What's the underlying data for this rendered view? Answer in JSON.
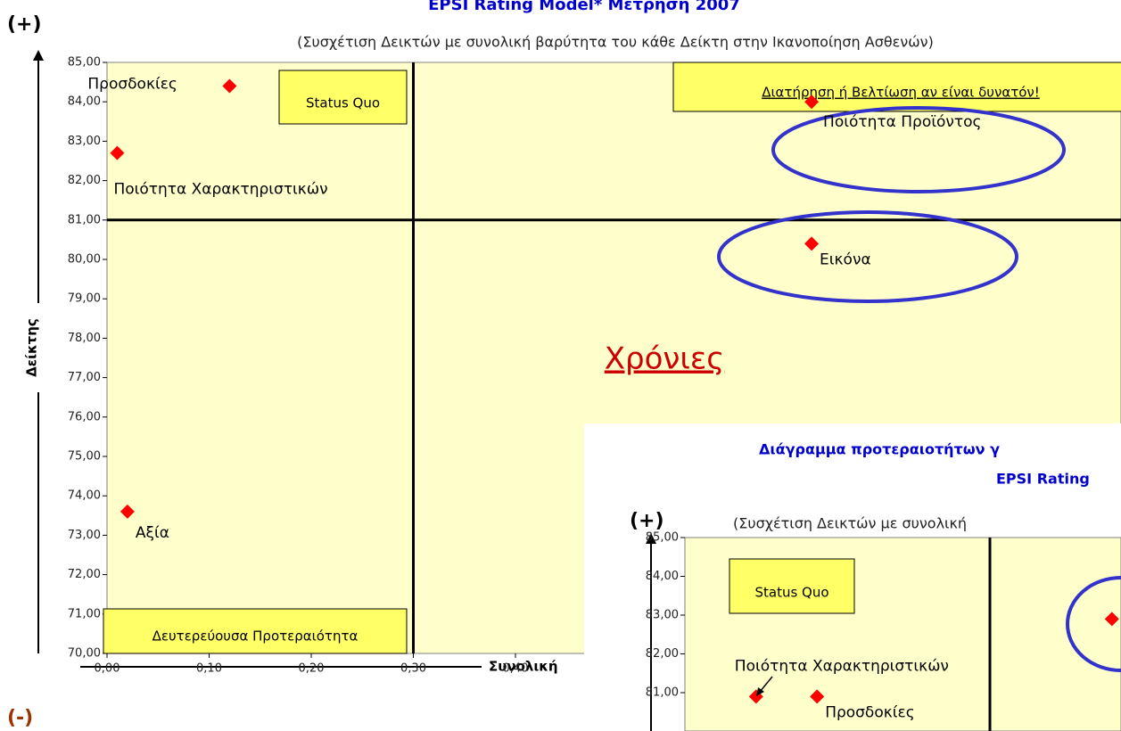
{
  "chart_data": [
    {
      "type": "scatter",
      "title": "EPSI Rating Model* Μέτρηση 2007",
      "subtitle": "(Συσχέτιση Δεικτών με συνολική βαρύτητα του κάθε Δείκτη στην Ικανοποίηση Ασθενών)",
      "y_label": "Δείκτης",
      "x_label": "Συνολική",
      "plus_label": "(+)",
      "minus_label": "(-)",
      "labels": [
        "Προσδοκίες",
        "Ποιότητα Χαρακτηριστικών",
        "Αξία",
        "Ποιότητα Προϊόντος",
        "Εικόνα"
      ],
      "x": [
        0.12,
        0.01,
        0.02,
        0.69,
        0.69
      ],
      "values": [
        84.4,
        82.7,
        73.6,
        84.0,
        80.4
      ],
      "color": "#ff0000",
      "xlim": [
        0,
        1.2
      ],
      "xticks": [
        {
          "value": 0,
          "label": "0,00"
        },
        {
          "value": 0.1,
          "label": "0,10"
        },
        {
          "value": 0.2,
          "label": "0,20"
        },
        {
          "value": 0.3,
          "label": "0,30"
        },
        {
          "value": 0.4,
          "label": "0,40"
        }
      ],
      "ylim": [
        70,
        85
      ],
      "yticks": [
        {
          "value": 70,
          "label": "70,00"
        },
        {
          "value": 71,
          "label": "71,00"
        },
        {
          "value": 72,
          "label": "72,00"
        },
        {
          "value": 73,
          "label": "73,00"
        },
        {
          "value": 74,
          "label": "74,00"
        },
        {
          "value": 75,
          "label": "75,00"
        },
        {
          "value": 76,
          "label": "76,00"
        },
        {
          "value": 77,
          "label": "77,00"
        },
        {
          "value": 78,
          "label": "78,00"
        },
        {
          "value": 79,
          "label": "79,00"
        },
        {
          "value": 80,
          "label": "80,00"
        },
        {
          "value": 81,
          "label": "81,00"
        },
        {
          "value": 82,
          "label": "82,00"
        },
        {
          "value": 83,
          "label": "83,00"
        },
        {
          "value": 84,
          "label": "84,00"
        },
        {
          "value": 85,
          "label": "85,00"
        }
      ],
      "quadrant_x": 0.3,
      "quadrant_y": 81,
      "quadrant_labels": [
        "Status Quo",
        "Διατήρηση ή Βελτίωση αν είναι δυνατόν!",
        "Δευτερεύουσα Προτεραιότητα"
      ]
    },
    {
      "type": "scatter",
      "title": [
        "Διάγραμμα προτεραιοτήτων γ",
        "EPSI Rating"
      ],
      "subtitle": "(Συσχέτιση Δεικτών με συνολική",
      "plus_label": "(+)",
      "labels": [
        "Ποιότητα Χαρακτηριστικών",
        "Προσδοκίες",
        null
      ],
      "x": [
        0.07,
        0.13,
        0.42
      ],
      "values": [
        80.9,
        80.9,
        82.9
      ],
      "color": "#ff0000",
      "xlim": [
        0,
        1.2
      ],
      "ylim": [
        70,
        85
      ],
      "yticks": [
        {
          "value": 81,
          "label": "81,00"
        },
        {
          "value": 82,
          "label": "82,00"
        },
        {
          "value": 83,
          "label": "83,00"
        },
        {
          "value": 84,
          "label": "84,00"
        },
        {
          "value": 85,
          "label": "85,00"
        }
      ],
      "quadrant_x": 0.3,
      "quadrant_labels": [
        "Status Quo"
      ]
    }
  ],
  "link": "Χρόνιες"
}
